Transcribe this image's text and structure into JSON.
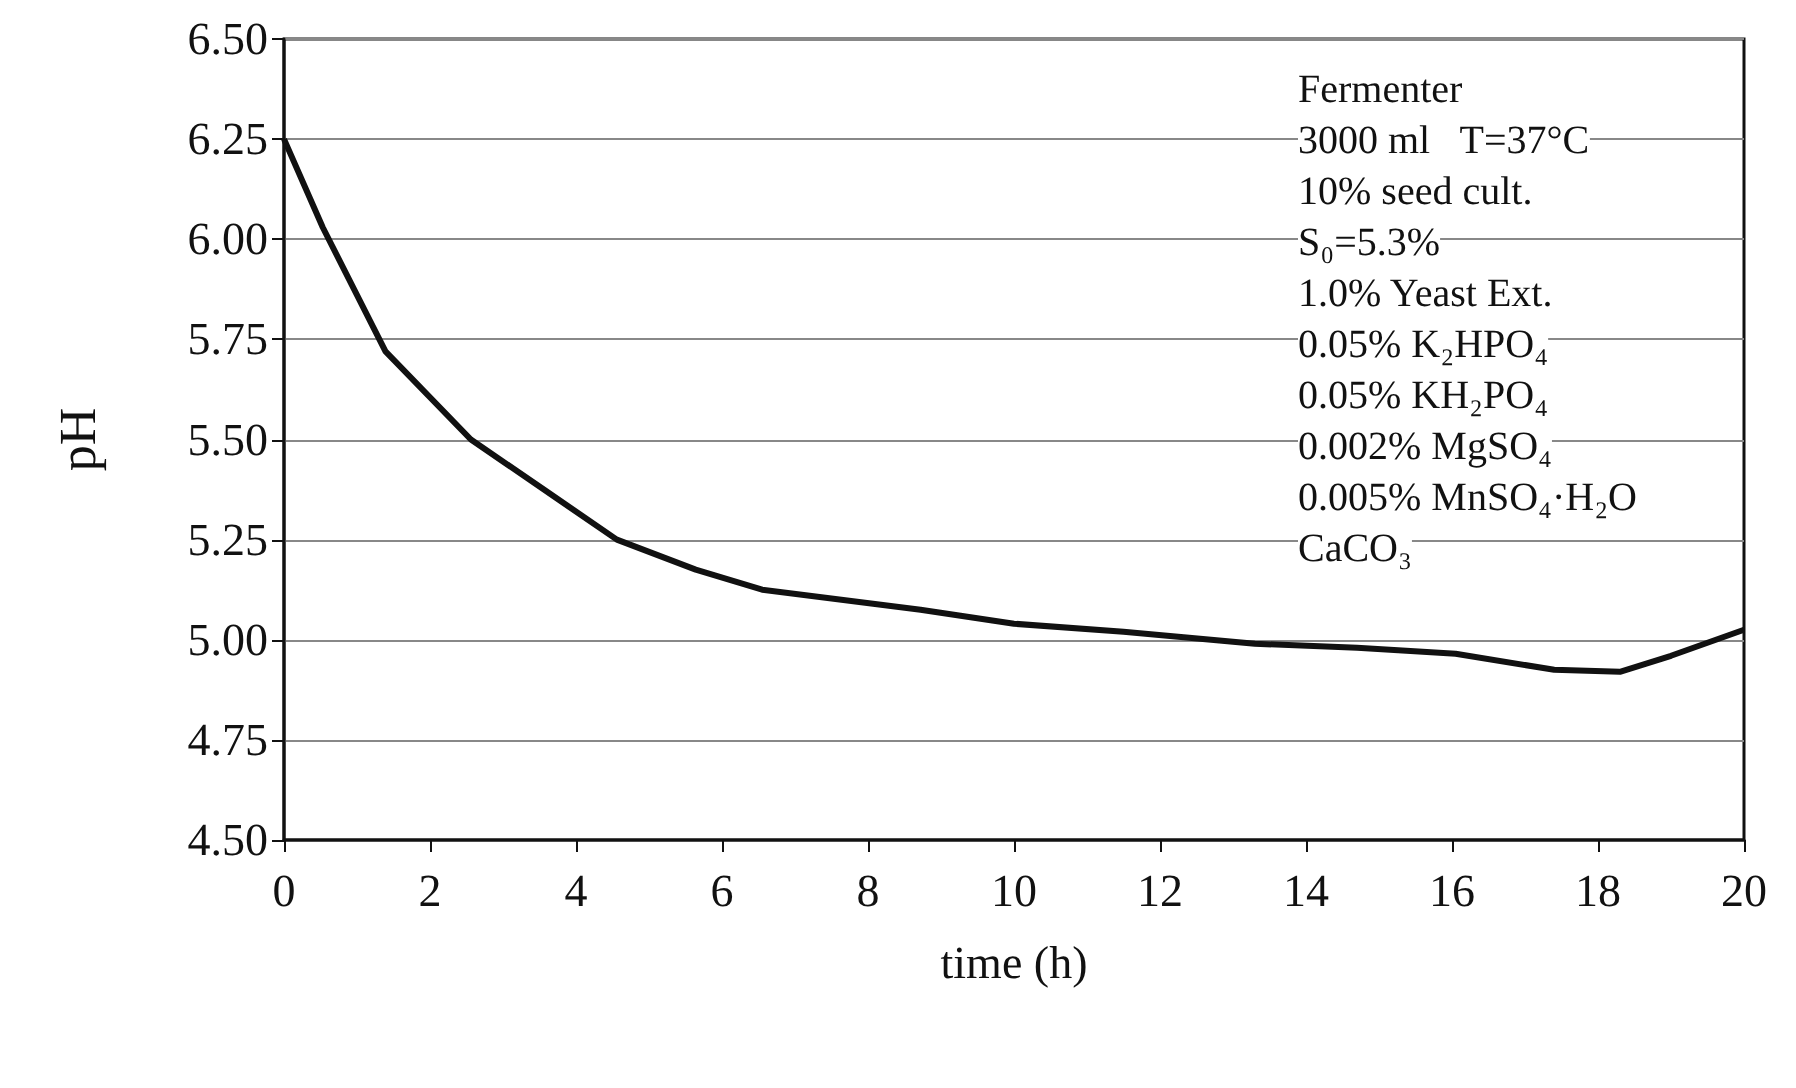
{
  "chart_data": {
    "type": "line",
    "xlabel": "time (h)",
    "ylabel": "pH",
    "x": [
      0,
      0.53,
      1.39,
      2.56,
      3.56,
      4.56,
      5.64,
      6.55,
      8.72,
      10,
      11.5,
      13.3,
      14.7,
      16.05,
      17.4,
      18.3,
      19,
      20
    ],
    "series": [
      {
        "color": "#111111",
        "values": [
          6.25,
          6.03,
          5.72,
          5.5,
          5.375,
          5.25,
          5.175,
          5.125,
          5.075,
          5.04,
          5.02,
          4.99,
          4.98,
          4.965,
          4.925,
          4.92,
          4.96,
          5.025
        ]
      }
    ],
    "xlim": [
      0,
      20
    ],
    "xticks": [
      0,
      2,
      4,
      6,
      8,
      10,
      12,
      14,
      16,
      18,
      20
    ],
    "ylim": [
      4.5,
      6.5
    ],
    "yticks": [
      {
        "value": 4.5,
        "label": "4.50"
      },
      {
        "value": 4.75,
        "label": "4.75"
      },
      {
        "value": 5,
        "label": "5.00"
      },
      {
        "value": 5.25,
        "label": "5.25"
      },
      {
        "value": 5.5,
        "label": "5.50"
      },
      {
        "value": 5.75,
        "label": "5.75"
      },
      {
        "value": 6,
        "label": "6.00"
      },
      {
        "value": 6.25,
        "label": "6.25"
      },
      {
        "value": 6.5,
        "label": "6.50"
      }
    ],
    "grid": "y",
    "marker": "none",
    "line_style": "solid",
    "annotations": [
      "Fermenter",
      "3000 ml   T=37°C",
      "10% seed cult.",
      "S₀=5.3%",
      "1.0% Yeast Ext.",
      "0.05% K₂HPO₄",
      "0.05% KH₂PO₄",
      "0.002% MgSO₄",
      "0.005% MnSO₄·H₂O",
      "CaCO₃"
    ]
  }
}
